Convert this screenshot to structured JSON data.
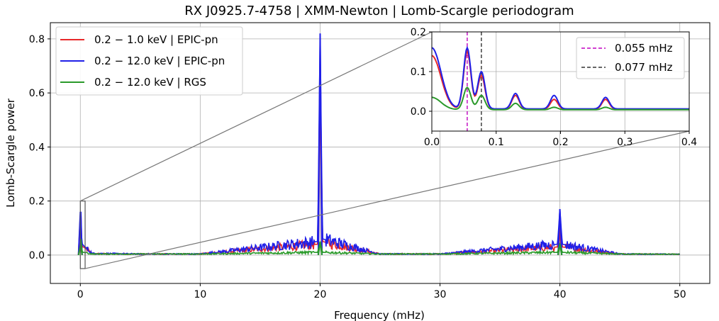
{
  "chart_data": {
    "type": "line",
    "title": "RX J0925.7-4758 | XMM-Newton | Lomb-Scargle periodogram",
    "xlabel": "Frequency (mHz)",
    "ylabel": "Lomb-Scargle power",
    "xlim": [
      -2.5,
      52.5
    ],
    "ylim": [
      -0.105,
      0.86
    ],
    "xticks": [
      0,
      10,
      20,
      30,
      40,
      50
    ],
    "yticks": [
      0.0,
      0.2,
      0.4,
      0.6,
      0.8
    ],
    "xtick_labels": [
      "0",
      "10",
      "20",
      "30",
      "40",
      "50"
    ],
    "ytick_labels": [
      "0.0",
      "0.2",
      "0.4",
      "0.6",
      "0.8"
    ],
    "grid": true,
    "legend": "upper-left",
    "series": [
      {
        "name": "0.2 − 1.0 keV | EPIC-pn",
        "color": "#e8282a",
        "x": [
          0,
          0.055,
          0.077,
          0.13,
          0.19,
          0.27,
          1,
          5,
          10,
          19.8,
          20,
          20.2,
          25,
          30,
          39.8,
          40,
          40.2,
          45,
          50
        ],
        "y": [
          0.14,
          0.15,
          0.09,
          0.04,
          0.03,
          0.03,
          0.005,
          0.004,
          0.004,
          0.04,
          0.72,
          0.05,
          0.004,
          0.004,
          0.03,
          0.1,
          0.03,
          0.004,
          0.003
        ]
      },
      {
        "name": "0.2 − 12.0 keV | EPIC-pn",
        "color": "#2020e8",
        "x": [
          0,
          0.055,
          0.077,
          0.13,
          0.19,
          0.27,
          1,
          5,
          10,
          19.8,
          20,
          20.2,
          25,
          30,
          39.8,
          40,
          40.2,
          45,
          50
        ],
        "y": [
          0.16,
          0.16,
          0.1,
          0.045,
          0.04,
          0.035,
          0.006,
          0.004,
          0.004,
          0.05,
          0.82,
          0.06,
          0.004,
          0.004,
          0.04,
          0.17,
          0.04,
          0.004,
          0.003
        ]
      },
      {
        "name": "0.2 − 12.0 keV | RGS",
        "color": "#2a9a2a",
        "x": [
          0,
          0.055,
          0.077,
          0.13,
          0.19,
          0.27,
          1,
          5,
          10,
          19.8,
          20,
          20.2,
          25,
          30,
          39.8,
          40,
          40.2,
          45,
          50
        ],
        "y": [
          0.035,
          0.06,
          0.04,
          0.02,
          0.01,
          0.01,
          0.004,
          0.004,
          0.004,
          0.01,
          0.05,
          0.01,
          0.004,
          0.004,
          0.01,
          0.04,
          0.01,
          0.004,
          0.003
        ]
      }
    ],
    "inset": {
      "xlim": [
        0,
        0.4
      ],
      "ylim": [
        -0.05,
        0.2
      ],
      "xticks": [
        0.0,
        0.1,
        0.2,
        0.3,
        0.4
      ],
      "yticks": [
        0.0,
        0.1,
        0.2
      ],
      "xtick_labels": [
        "0.0",
        "0.1",
        "0.2",
        "0.3",
        "0.4"
      ],
      "ytick_labels": [
        "0.0",
        "0.1",
        "0.2"
      ],
      "legend": "upper-right",
      "markers": [
        {
          "name": "0.055 mHz",
          "x": 0.055,
          "color": "#c000c0"
        },
        {
          "name": "0.077 mHz",
          "x": 0.077,
          "color": "#333333"
        }
      ]
    }
  }
}
